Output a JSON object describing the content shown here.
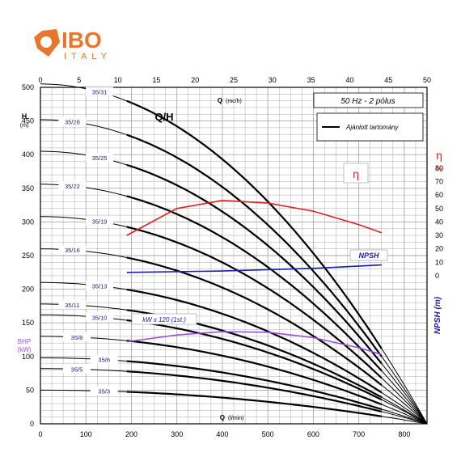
{
  "brand": {
    "name": "IBO",
    "sub": "ITALY",
    "color": "#e8762d"
  },
  "colors": {
    "curve": "#000000",
    "eta": "#e02020",
    "npsh": "#1a1ab5",
    "power": "#9b4fd8",
    "label_text": "#1a1a7a",
    "grid": "#aaaaaa"
  },
  "chart_data": {
    "type": "line",
    "title": "Q/H",
    "subtitle": "50 Hz - 2 pólus",
    "legend_label": "Ajánlott tartomány",
    "x_bottom": {
      "label_q": "Q",
      "unit": "(l/min)",
      "range": [
        0,
        850
      ],
      "ticks": [
        0,
        100,
        200,
        300,
        400,
        500,
        600,
        700,
        800
      ]
    },
    "x_top": {
      "label_q": "Q",
      "unit": "(mc/h)",
      "range": [
        0,
        50
      ],
      "ticks": [
        0,
        5,
        10,
        15,
        20,
        25,
        30,
        35,
        40,
        45,
        50
      ]
    },
    "y_left": {
      "label": "H",
      "unit": "(m)",
      "range": [
        0,
        500
      ],
      "ticks": [
        0,
        50,
        100,
        150,
        200,
        250,
        300,
        350,
        400,
        450,
        500
      ]
    },
    "y_left_secondary": {
      "label": "BHP",
      "unit": "(kW)"
    },
    "y_right_eta": {
      "symbol": "η",
      "unit": "%",
      "ticks": [
        0,
        10,
        20,
        30,
        40,
        50,
        60,
        70,
        80
      ]
    },
    "y_right_npsh": {
      "label": "NPSH (m)"
    },
    "eta_label": "η",
    "npsh_label": "NPSH",
    "power_label": "kW x 120 (1st.)",
    "series": [
      {
        "name": "35/31",
        "h0": 505,
        "qmax": 850
      },
      {
        "name": "35/28",
        "h0": 452,
        "qmax": 850
      },
      {
        "name": "35/25",
        "h0": 405,
        "qmax": 850
      },
      {
        "name": "35/22",
        "h0": 356,
        "qmax": 850
      },
      {
        "name": "35/19",
        "h0": 308,
        "qmax": 850
      },
      {
        "name": "35/16",
        "h0": 260,
        "qmax": 850
      },
      {
        "name": "35/13",
        "h0": 210,
        "qmax": 850
      },
      {
        "name": "35/11",
        "h0": 178,
        "qmax": 850
      },
      {
        "name": "35/10",
        "h0": 162,
        "qmax": 850
      },
      {
        "name": "35/8",
        "h0": 130,
        "qmax": 850
      },
      {
        "name": "35/6",
        "h0": 98,
        "qmax": 850
      },
      {
        "name": "35/5",
        "h0": 82,
        "qmax": 850
      },
      {
        "name": "35/3",
        "h0": 50,
        "qmax": 850
      }
    ],
    "eta_curve": {
      "x": [
        190,
        300,
        400,
        500,
        600,
        700,
        750
      ],
      "y": [
        30,
        50,
        56,
        54,
        48,
        38,
        32
      ]
    },
    "npsh_curve": {
      "x": [
        190,
        400,
        600,
        750
      ],
      "y": [
        225,
        227,
        231,
        236
      ]
    },
    "power_curve": {
      "x": [
        190,
        300,
        400,
        500,
        600,
        700,
        750
      ],
      "y": [
        122,
        132,
        137,
        136,
        128,
        113,
        103
      ]
    }
  }
}
